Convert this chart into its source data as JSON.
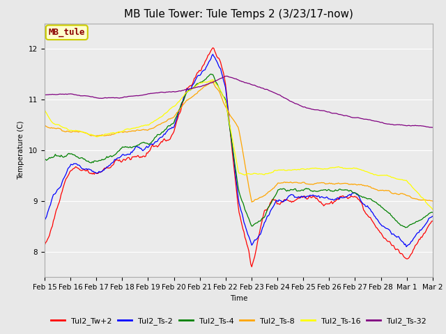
{
  "title": "MB Tule Tower: Tule Temps 2 (3/23/17-now)",
  "xlabel": "Time",
  "ylabel": "Temperature (C)",
  "ylim": [
    7.5,
    12.5
  ],
  "xlim": [
    0,
    15
  ],
  "xtick_labels": [
    "Feb 15",
    "Feb 16",
    "Feb 17",
    "Feb 18",
    "Feb 19",
    "Feb 20",
    "Feb 21",
    "Feb 22",
    "Feb 23",
    "Feb 24",
    "Feb 25",
    "Feb 26",
    "Feb 27",
    "Feb 28",
    "Mar 1",
    "Mar 2"
  ],
  "legend_labels": [
    "Tul2_Tw+2",
    "Tul2_Ts-2",
    "Tul2_Ts-4",
    "Tul2_Ts-8",
    "Tul2_Ts-16",
    "Tul2_Ts-32"
  ],
  "line_colors": [
    "red",
    "blue",
    "green",
    "orange",
    "yellow",
    "purple"
  ],
  "annotation_label": "MB_tule",
  "annotation_color": "#8B0000",
  "annotation_bg": "#FFFFCC",
  "annotation_border": "#CCCC00",
  "bg_color": "#E8E8E8",
  "plot_bg": "#EBEBEB",
  "title_fontsize": 11,
  "axis_fontsize": 7.5,
  "tick_fontsize": 7.5,
  "legend_fontsize": 8
}
